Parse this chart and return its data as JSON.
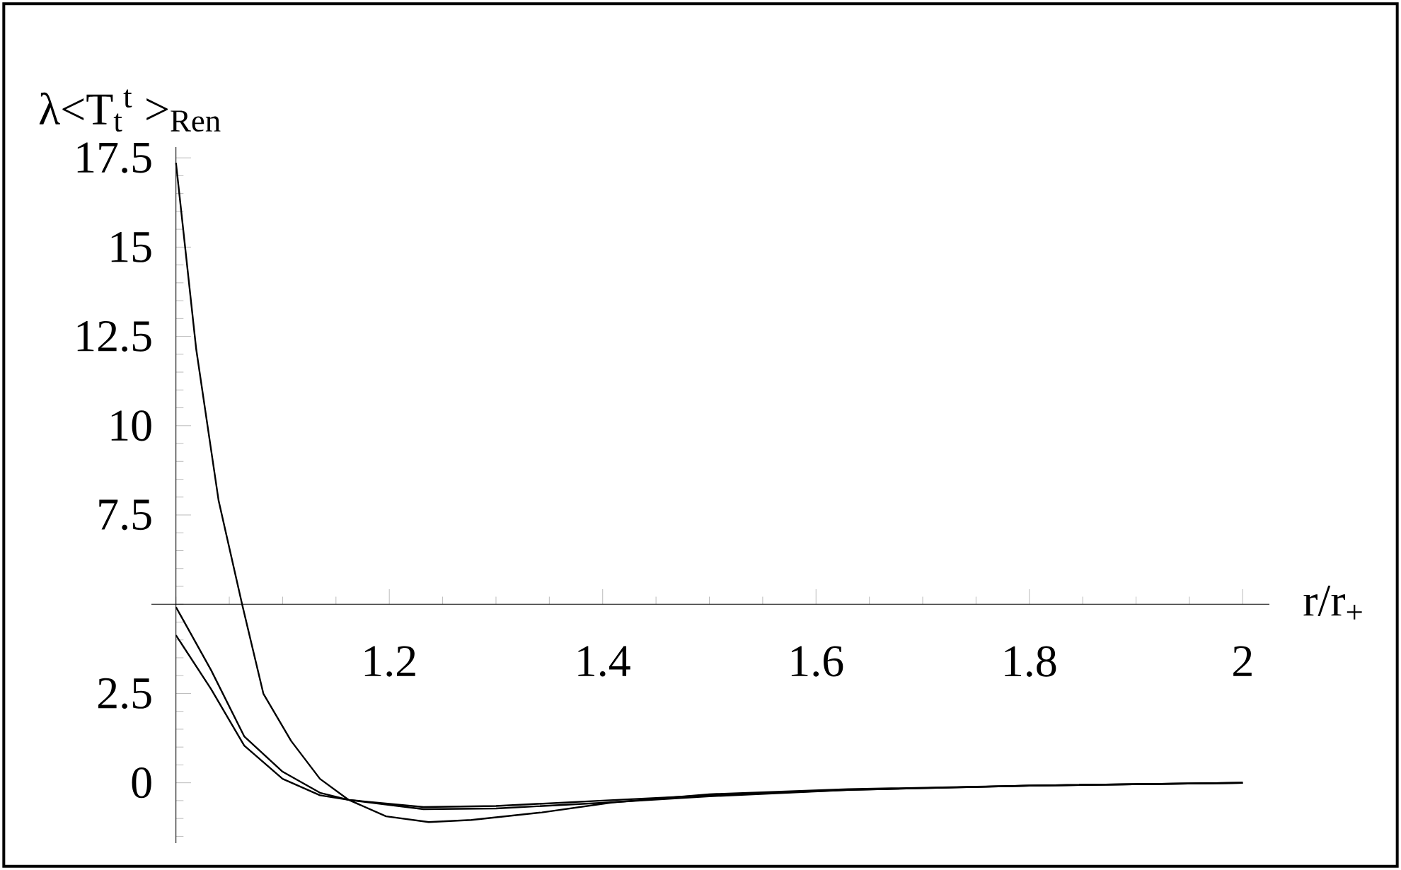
{
  "chart_data": {
    "type": "line",
    "xlabel": "r/r$_{+}$",
    "ylabel": "λ<T$_{t}$$^{t}$ >$_{Ren}$",
    "xlim": [
      0.977,
      2.025
    ],
    "ylim": [
      -1.69,
      17.8
    ],
    "xticks": [
      1.2,
      1.4,
      1.6,
      1.8,
      2
    ],
    "yticks": [
      0,
      2.5,
      7.5,
      10,
      12.5,
      15,
      17.5
    ],
    "marker": "none",
    "line_style": "solid",
    "series": [
      {
        "color": "#000000",
        "x": [
          1,
          1.019,
          1.04,
          1.062,
          1.082,
          1.108,
          1.135,
          1.162,
          1.197,
          1.237,
          1.277,
          1.343,
          1.409,
          1.5,
          1.63,
          1.8,
          2.0
        ],
        "values": [
          17.36,
          12.14,
          7.9,
          5.0,
          2.49,
          1.17,
          0.11,
          -0.48,
          -0.94,
          -1.1,
          -1.04,
          -0.83,
          -0.55,
          -0.32,
          -0.18,
          -0.08,
          0.0
        ]
      },
      {
        "color": "#000000",
        "x": [
          1,
          1.033,
          1.064,
          1.1,
          1.135,
          1.162,
          1.232,
          1.3,
          1.4,
          1.5,
          1.63,
          1.8,
          2.0
        ],
        "values": [
          4.92,
          3.15,
          1.3,
          0.31,
          -0.28,
          -0.48,
          -0.68,
          -0.65,
          -0.5,
          -0.35,
          -0.2,
          -0.08,
          0.0
        ]
      },
      {
        "color": "#000000",
        "x": [
          1,
          1.033,
          1.064,
          1.1,
          1.135,
          1.162,
          1.232,
          1.3,
          1.4,
          1.5,
          1.63,
          1.8,
          2.0
        ],
        "values": [
          4.13,
          2.62,
          1.04,
          0.11,
          -0.35,
          -0.48,
          -0.74,
          -0.72,
          -0.56,
          -0.38,
          -0.2,
          -0.08,
          0.0
        ]
      }
    ]
  }
}
